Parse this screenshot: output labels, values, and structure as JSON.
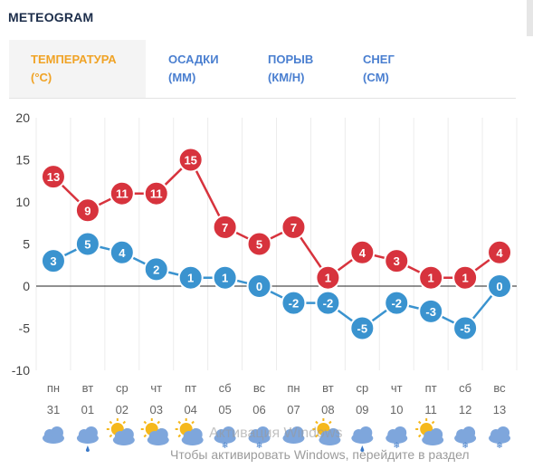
{
  "title": "METEOGRAM",
  "tabs": [
    {
      "line1": "ТЕМПЕРАТУРА",
      "line2": "(°C)"
    },
    {
      "line1": "ОСАДКИ",
      "line2": "(MM)"
    },
    {
      "line1": "ПОРЫВ",
      "line2": "(КМ/Н)"
    },
    {
      "line1": "СНЕГ",
      "line2": "(CM)"
    }
  ],
  "colors": {
    "max": "#d7333d",
    "min": "#3a93cf",
    "active_tab": "#f0a326",
    "tab": "#4a7fd0",
    "title": "#1c2d4a"
  },
  "chart_data": {
    "type": "line",
    "ylim": [
      -10,
      20
    ],
    "yticks": [
      20,
      15,
      10,
      5,
      0,
      -5,
      -10
    ],
    "days": [
      "пн",
      "вт",
      "ср",
      "чт",
      "пт",
      "сб",
      "вс",
      "пн",
      "вт",
      "ср",
      "чт",
      "пт",
      "сб",
      "вс"
    ],
    "dates": [
      "31",
      "01",
      "02",
      "03",
      "04",
      "05",
      "06",
      "07",
      "08",
      "09",
      "10",
      "11",
      "12",
      "13"
    ],
    "grid": true,
    "series": [
      {
        "values": [
          13,
          9,
          11,
          11,
          15,
          7,
          5,
          7,
          1,
          4,
          3,
          1,
          1,
          4
        ]
      },
      {
        "values": [
          3,
          5,
          4,
          2,
          1,
          1,
          0,
          -2,
          -2,
          -5,
          -2,
          -3,
          -5,
          0
        ]
      }
    ]
  },
  "weather_icons": [
    "cloud-icon",
    "cloud-rain-icon",
    "sun-cloud-icon",
    "sun-cloud-icon",
    "sun-cloud-icon",
    "cloud-snow-icon",
    "cloud-snow-icon",
    "cloud-icon",
    "sun-cloud-icon",
    "cloud-rain-icon",
    "cloud-snow-icon",
    "sun-cloud-icon",
    "cloud-snow-icon",
    "cloud-snow-icon"
  ],
  "watermark": {
    "title": "Активация Windows",
    "text": "Чтобы активировать Windows, перейдите в раздел"
  }
}
